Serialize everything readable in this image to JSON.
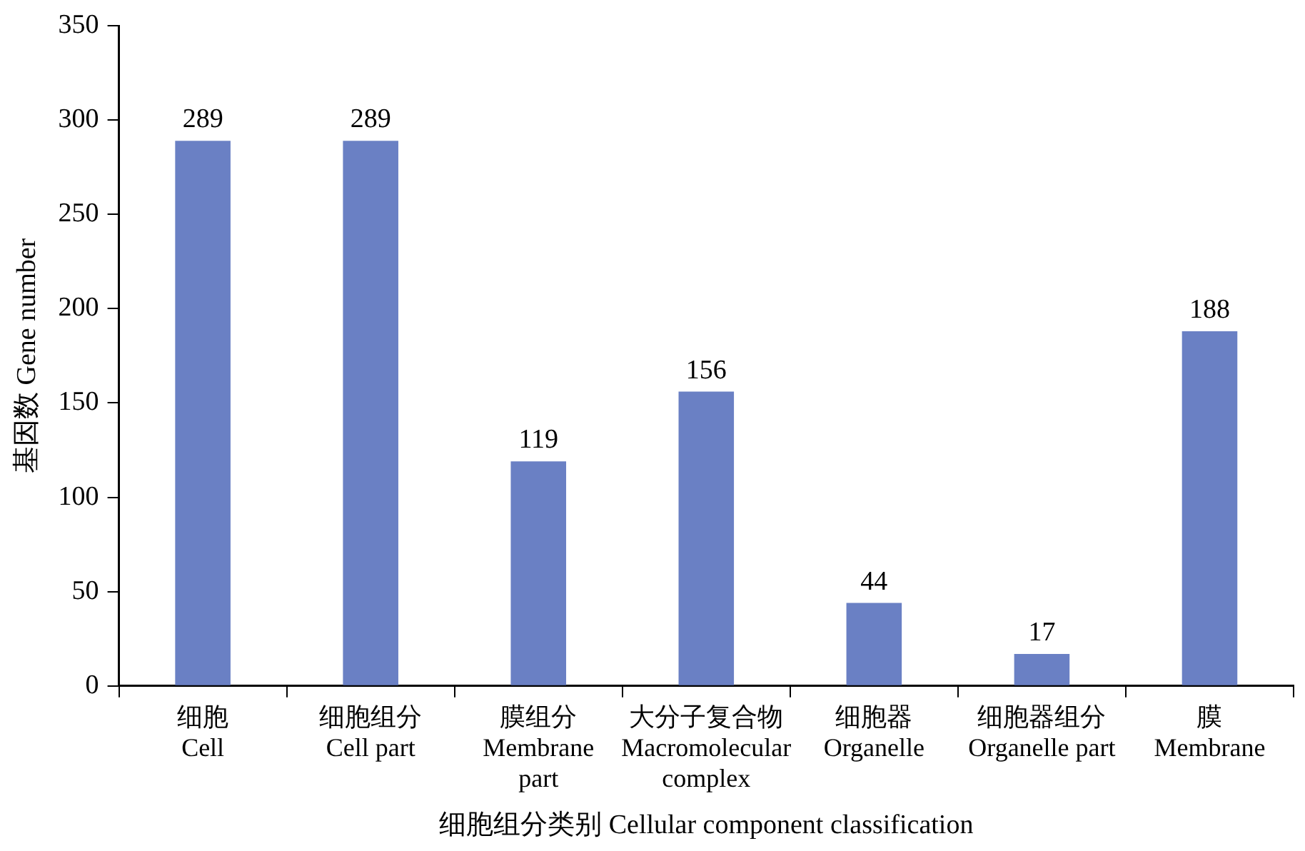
{
  "chart_data": {
    "type": "bar",
    "xlabel": "细胞组分类别 Cellular component classification",
    "ylabel": "基因数 Gene number",
    "categories": [
      "细胞\nCell",
      "细胞组分\nCell part",
      "膜组分\nMembrane\npart",
      "大分子复合物\nMacromolecular\ncomplex",
      "细胞器\nOrganelle",
      "细胞器组分\nOrganelle part",
      "膜\nMembrane"
    ],
    "values": [
      289,
      289,
      119,
      156,
      44,
      17,
      188
    ],
    "color": "#6a80c4",
    "ylim": [
      0,
      350
    ],
    "yticks": [
      0,
      50,
      100,
      150,
      200,
      250,
      300,
      350
    ],
    "grid": false,
    "legend": false,
    "data_labels": true
  }
}
